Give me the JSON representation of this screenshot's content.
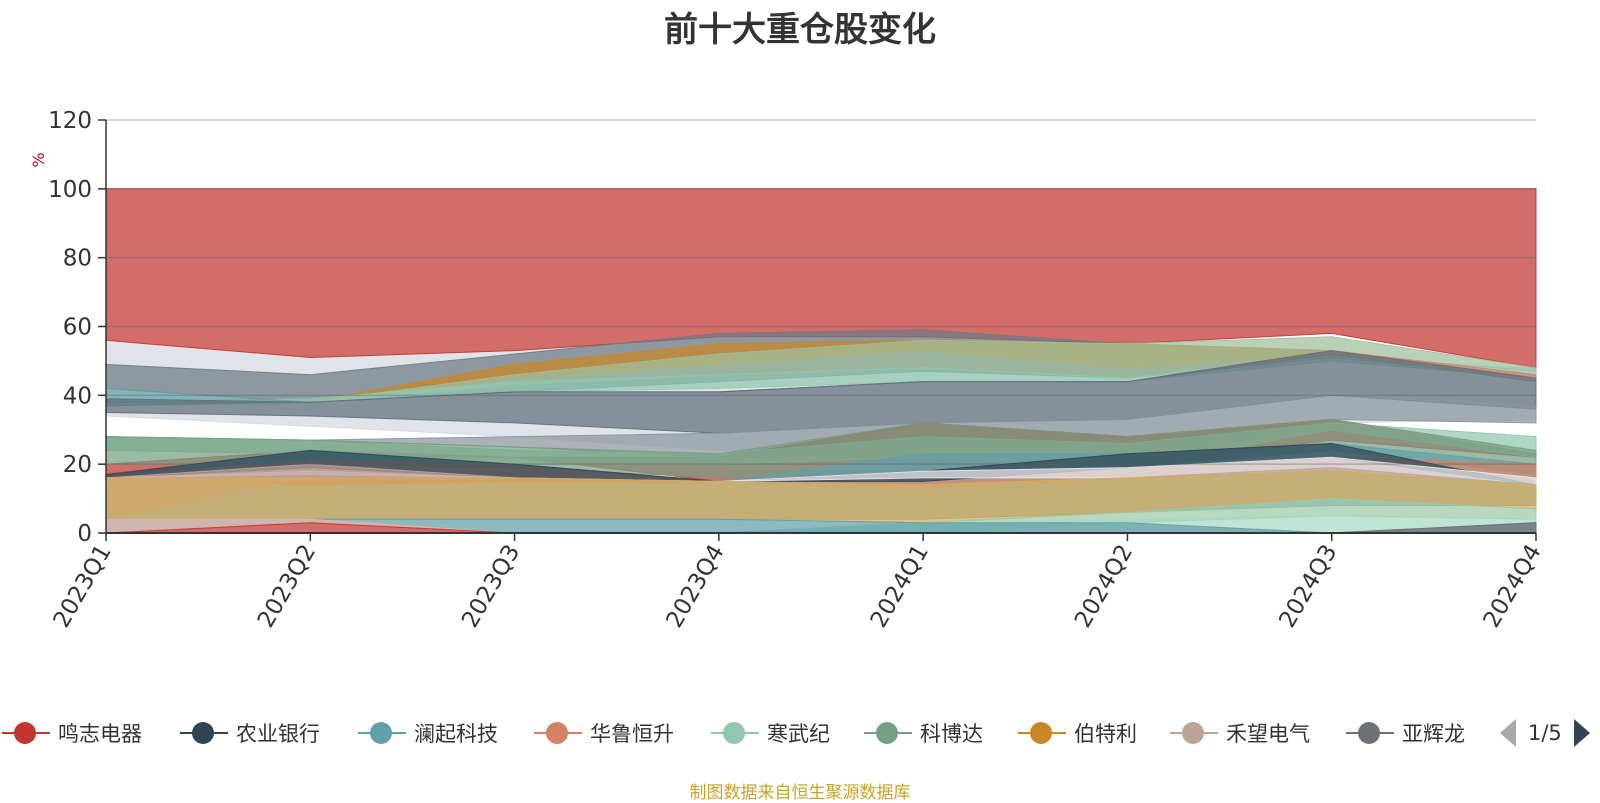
{
  "title": "前十大重仓股变化",
  "source_note": "制图数据来自恒生聚源数据库",
  "pager": {
    "text": "1/5"
  },
  "legend": [
    {
      "name": "鸣志电器",
      "color": "#c23531"
    },
    {
      "name": "农业银行",
      "color": "#2f4554"
    },
    {
      "name": "澜起科技",
      "color": "#61a0a8"
    },
    {
      "name": "华鲁恒升",
      "color": "#d48265"
    },
    {
      "name": "寒武纪",
      "color": "#91c7ae"
    },
    {
      "name": "科博达",
      "color": "#749f83"
    },
    {
      "name": "伯特利",
      "color": "#ca8622"
    },
    {
      "name": "禾望电气",
      "color": "#bda29a"
    },
    {
      "name": "亚辉龙",
      "color": "#6e7074"
    }
  ],
  "chart_data": {
    "type": "area",
    "title": "前十大重仓股变化",
    "ylabel": "%",
    "ylim": [
      0,
      120
    ],
    "yticks": [
      0,
      20,
      40,
      60,
      80,
      100,
      120
    ],
    "categories": [
      "2023Q1",
      "2023Q2",
      "2023Q3",
      "2023Q4",
      "2024Q1",
      "2024Q2",
      "2024Q3",
      "2024Q4"
    ],
    "bands": [
      {
        "color": "#d4d9e0",
        "lower": [
          34,
          31,
          28,
          24,
          27,
          28,
          32,
          33
        ],
        "upper": [
          56,
          51,
          53,
          57,
          57,
          52,
          50,
          48
        ]
      },
      {
        "color": "#c23531",
        "lower": [
          56,
          51,
          53,
          57,
          57,
          55,
          58,
          48
        ],
        "upper": [
          100,
          100,
          100,
          100,
          100,
          100,
          100,
          100
        ]
      },
      {
        "color": "#6e7a84",
        "lower": [
          42,
          38,
          41,
          44,
          47,
          45,
          51,
          45
        ],
        "upper": [
          49,
          46,
          52,
          58,
          59,
          55,
          53,
          45
        ]
      },
      {
        "color": "#ca8622",
        "lower": [
          38,
          38,
          45,
          49,
          53,
          48,
          52,
          45
        ],
        "upper": [
          38,
          38,
          49,
          55,
          56,
          55,
          53,
          45
        ]
      },
      {
        "color": "#9fbf9d",
        "lower": [
          38,
          38,
          43,
          46,
          48,
          45,
          52,
          47
        ],
        "upper": [
          38,
          38,
          46,
          52,
          56,
          55,
          57,
          48
        ]
      },
      {
        "color": "#91c7ae",
        "lower": [
          38,
          38,
          41,
          42,
          44,
          44,
          50,
          45
        ],
        "upper": [
          38,
          39,
          44,
          46,
          48,
          45,
          52,
          47
        ]
      },
      {
        "color": "#d48265",
        "lower": [
          38,
          38,
          41,
          41,
          44,
          44,
          52,
          44
        ],
        "upper": [
          38,
          38,
          41,
          41,
          44,
          44,
          53,
          46
        ]
      },
      {
        "color": "#61a0a8",
        "lower": [
          37,
          38,
          41,
          41,
          44,
          44,
          52,
          44
        ],
        "upper": [
          42,
          38,
          41,
          41,
          44,
          44,
          52,
          44
        ]
      },
      {
        "color": "#5f6f7c",
        "lower": [
          35,
          34,
          32,
          29,
          32,
          33,
          40,
          36
        ],
        "upper": [
          39,
          38,
          41,
          41,
          44,
          44,
          53,
          45
        ]
      },
      {
        "color": "#8a949c",
        "lower": [
          28,
          27,
          25,
          22,
          23,
          23,
          33,
          32
        ],
        "upper": [
          28,
          27,
          28,
          29,
          32,
          33,
          41,
          37
        ]
      },
      {
        "color": "#c23531",
        "lower": [
          16,
          22,
          22,
          15,
          18,
          19,
          27,
          22
        ],
        "upper": [
          20,
          24,
          22,
          22,
          32,
          28,
          33,
          23
        ]
      },
      {
        "color": "#91c7ae",
        "lower": [
          24,
          23,
          20,
          20,
          22,
          19,
          30,
          22
        ],
        "upper": [
          28,
          27,
          24,
          23,
          28,
          26,
          32,
          28
        ]
      },
      {
        "color": "#749f83",
        "lower": [
          20,
          20,
          19,
          16,
          18,
          19,
          24,
          17
        ],
        "upper": [
          28,
          27,
          25,
          23,
          32,
          28,
          33,
          24
        ]
      },
      {
        "color": "#61a0a8",
        "lower": [
          4,
          4,
          4,
          4,
          4,
          6,
          8,
          8
        ],
        "upper": [
          16,
          24,
          20,
          15,
          23,
          23,
          26,
          20
        ]
      },
      {
        "color": "#d48265",
        "lower": [
          14,
          14,
          15,
          15,
          14,
          16,
          19,
          15
        ],
        "upper": [
          16,
          21,
          20,
          15,
          18,
          19,
          22,
          20
        ]
      },
      {
        "color": "#2f4554",
        "lower": [
          16,
          19,
          16,
          15,
          15,
          19,
          22,
          14
        ],
        "upper": [
          17,
          24,
          20,
          15,
          18,
          23,
          26,
          14
        ]
      },
      {
        "color": "#e8e9ee",
        "lower": [
          16,
          17,
          16,
          15,
          16,
          16,
          18,
          14
        ],
        "upper": [
          16,
          18,
          16,
          15,
          18,
          19,
          22,
          16
        ]
      },
      {
        "color": "#bda29a",
        "lower": [
          4,
          16,
          16,
          15,
          13,
          16,
          18,
          14
        ],
        "upper": [
          16,
          20,
          16,
          15,
          14,
          16,
          19,
          14
        ]
      },
      {
        "color": "#d8aa5a",
        "lower": [
          4,
          4,
          4,
          4,
          3,
          6,
          10,
          7
        ],
        "upper": [
          16,
          16,
          16,
          15,
          14,
          16,
          18,
          14
        ]
      },
      {
        "color": "#9ec9a8",
        "lower": [
          0,
          0,
          0,
          0,
          0,
          3,
          5,
          4
        ],
        "upper": [
          0,
          0,
          0,
          0,
          3,
          6,
          10,
          7
        ]
      },
      {
        "color": "#a8d8c4",
        "lower": [
          0,
          0,
          0,
          0,
          0,
          0,
          0,
          3
        ],
        "upper": [
          0,
          0,
          0,
          0,
          3,
          4,
          5,
          4
        ]
      },
      {
        "color": "#61a0a8",
        "lower": [
          0,
          3,
          0,
          0,
          0,
          0,
          0,
          0
        ],
        "upper": [
          4,
          4,
          4,
          4,
          3,
          3,
          0,
          3
        ]
      },
      {
        "color": "#e7b3a8",
        "lower": [
          0,
          3,
          0,
          0,
          0,
          0,
          0,
          0
        ],
        "upper": [
          4,
          4,
          0,
          0,
          0,
          0,
          0,
          0
        ]
      },
      {
        "color": "#c23531",
        "lower": [
          0,
          0,
          0,
          0,
          0,
          0,
          0,
          0
        ],
        "upper": [
          0,
          3,
          0,
          0,
          0,
          0,
          0,
          0
        ]
      },
      {
        "color": "#6e7074",
        "lower": [
          0,
          0,
          0,
          0,
          0,
          0,
          0,
          0
        ],
        "upper": [
          0,
          0,
          0,
          0,
          0,
          0,
          0,
          3
        ]
      }
    ]
  }
}
